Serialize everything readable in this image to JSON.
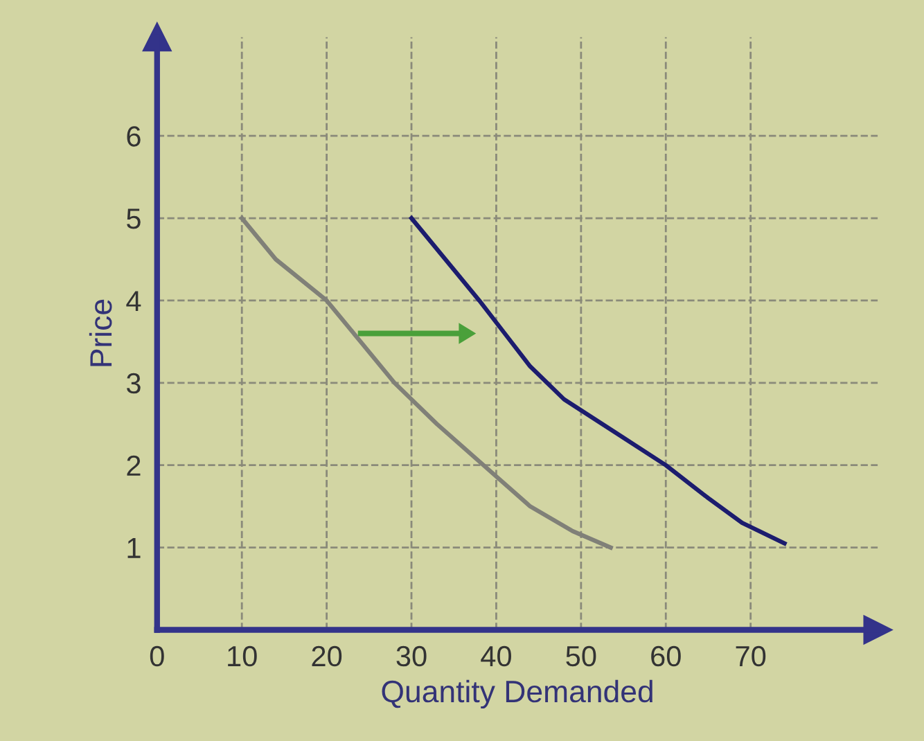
{
  "chart_data": {
    "type": "line",
    "xlabel": "Quantity Demanded",
    "ylabel": "Price",
    "series": [
      {
        "color": "#808078",
        "x": [
          10,
          14,
          20,
          24,
          28,
          33,
          38.5,
          44,
          49,
          53.5
        ],
        "values": [
          5,
          4.5,
          4,
          3.5,
          3,
          2.5,
          2,
          1.5,
          1.2,
          1
        ]
      },
      {
        "color": "#1c1c6e",
        "x": [
          30,
          34,
          38,
          41,
          44,
          48,
          54,
          60,
          65,
          69,
          74
        ],
        "values": [
          5,
          4.5,
          4,
          3.6,
          3.2,
          2.8,
          2.4,
          2,
          1.6,
          1.3,
          1.05
        ]
      }
    ],
    "xlim": [
      0,
      85
    ],
    "ylim": [
      0,
      7.2
    ],
    "xticks": [
      0,
      10,
      20,
      30,
      40,
      50,
      60,
      70
    ],
    "yticks": [
      1,
      2,
      3,
      4,
      5,
      6
    ],
    "grid": true,
    "line_style": "solid",
    "marker": "none",
    "legend": false
  }
}
